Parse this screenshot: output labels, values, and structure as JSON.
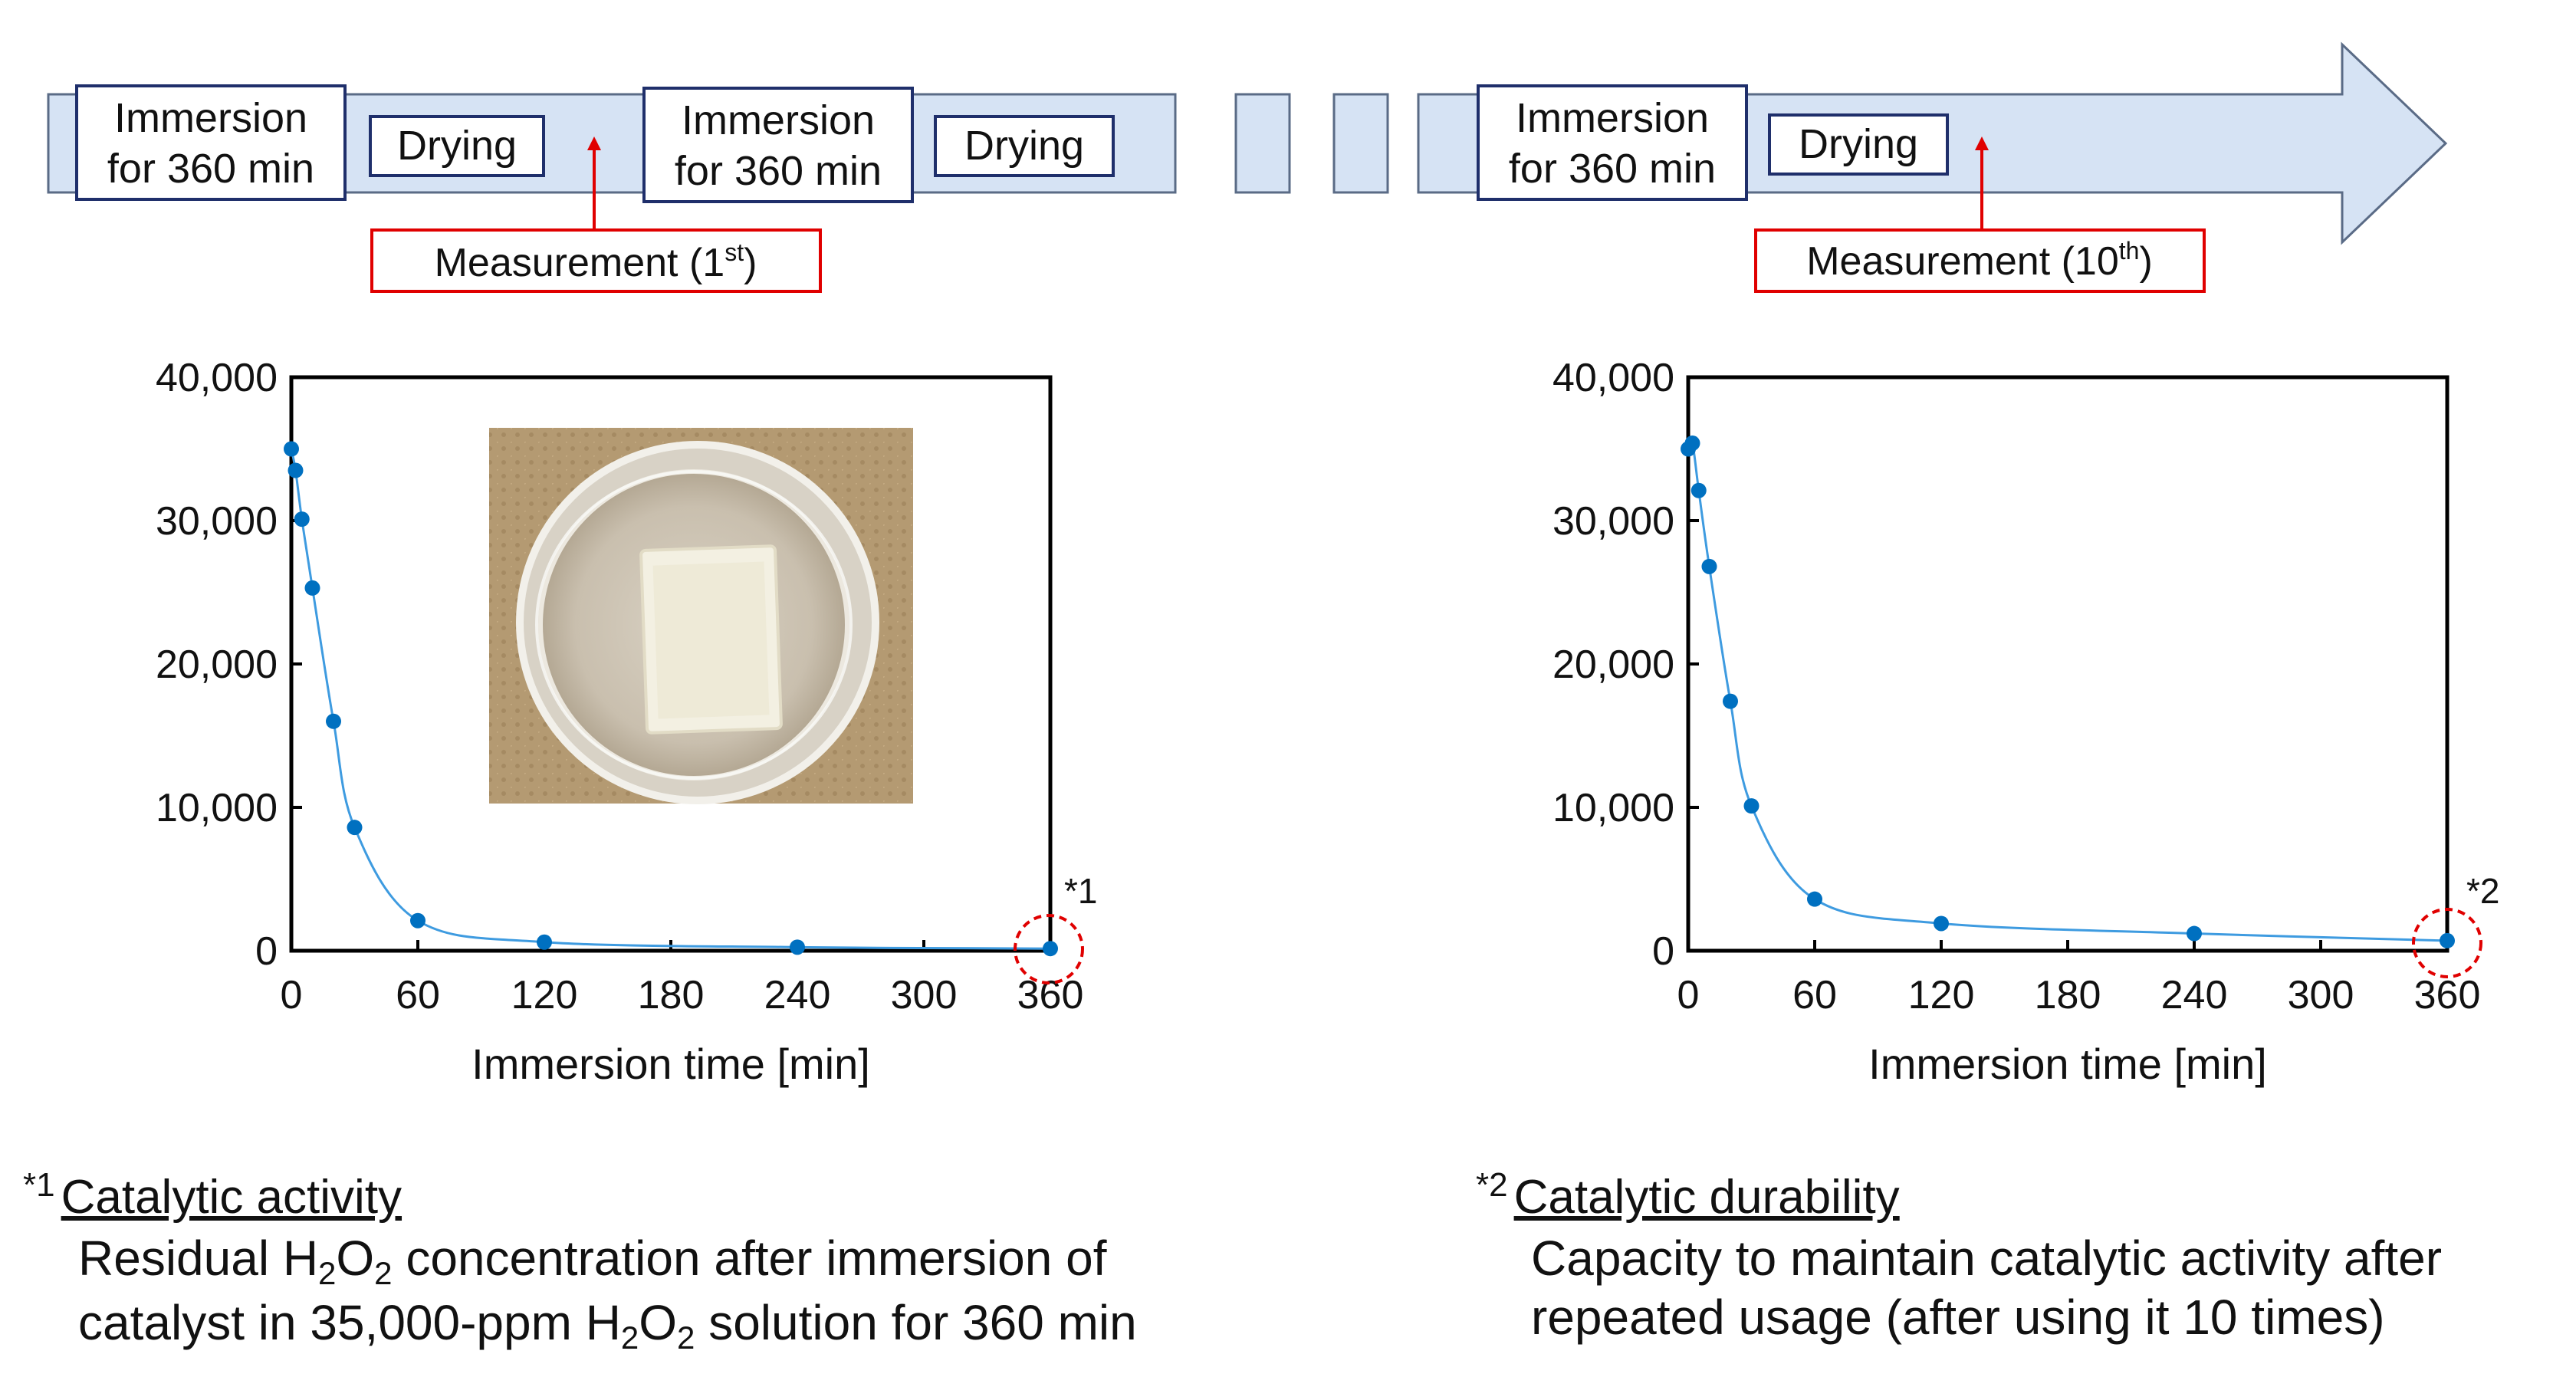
{
  "timeline": {
    "step_immersion_line1": "Immersion",
    "step_immersion_line2": "for 360 min",
    "step_drying": "Drying",
    "measurement_first_prefix": "Measurement (1",
    "measurement_first_sup": "st",
    "measurement_tenth_prefix": "Measurement (10",
    "measurement_tenth_sup": "th",
    "measurement_suffix": ")"
  },
  "colors": {
    "series": "#0070C0",
    "timeline_fill": "#D6E3F4",
    "step_border": "#1F2F6B",
    "measurement_border": "#E00000",
    "marker_circle": "#E00000"
  },
  "chart_data": [
    {
      "type": "line",
      "title": "",
      "xlabel": "Immersion time [min]",
      "ylabel": "",
      "xlim": [
        0,
        360
      ],
      "ylim": [
        0,
        40000
      ],
      "xticks": [
        0,
        60,
        120,
        180,
        240,
        300,
        360
      ],
      "yticks": [
        0,
        10000,
        20000,
        30000,
        40000
      ],
      "xtick_labels": [
        "0",
        "60",
        "120",
        "180",
        "240",
        "300",
        "360"
      ],
      "ytick_labels": [
        "0",
        "10,000",
        "20,000",
        "30,000",
        "40,000"
      ],
      "annotation": "*1",
      "inset": "photo of white catalyst sample in a glass petri dish",
      "series": [
        {
          "name": "1st measurement",
          "x": [
            0,
            2,
            5,
            10,
            20,
            30,
            60,
            120,
            240,
            360
          ],
          "y": [
            35000,
            33500,
            30100,
            25300,
            16000,
            8600,
            2100,
            600,
            250,
            150
          ]
        }
      ]
    },
    {
      "type": "line",
      "title": "",
      "xlabel": "Immersion time [min]",
      "ylabel": "",
      "xlim": [
        0,
        360
      ],
      "ylim": [
        0,
        40000
      ],
      "xticks": [
        0,
        60,
        120,
        180,
        240,
        300,
        360
      ],
      "yticks": [
        0,
        10000,
        20000,
        30000,
        40000
      ],
      "xtick_labels": [
        "0",
        "60",
        "120",
        "180",
        "240",
        "300",
        "360"
      ],
      "ytick_labels": [
        "0",
        "10,000",
        "20,000",
        "30,000",
        "40,000"
      ],
      "annotation": "*2",
      "series": [
        {
          "name": "10th measurement",
          "x": [
            0,
            2,
            5,
            10,
            20,
            30,
            60,
            120,
            240,
            360
          ],
          "y": [
            35000,
            35400,
            32100,
            26800,
            17400,
            10100,
            3600,
            1900,
            1200,
            700
          ]
        }
      ]
    }
  ],
  "notes": {
    "left": {
      "mark": "*1",
      "title": "Catalytic activity",
      "line1_a": "Residual H",
      "line1_sub1": "2",
      "line1_b": "O",
      "line1_sub2": "2",
      "line1_c": " concentration after immersion of",
      "line2_a": "catalyst in 35,000-ppm H",
      "line2_sub1": "2",
      "line2_b": "O",
      "line2_sub2": "2",
      "line2_c": " solution for 360 min"
    },
    "right": {
      "mark": "*2",
      "title": "Catalytic durability",
      "line1": "Capacity to maintain catalytic activity after",
      "line2": "repeated usage (after using it 10 times)"
    }
  }
}
